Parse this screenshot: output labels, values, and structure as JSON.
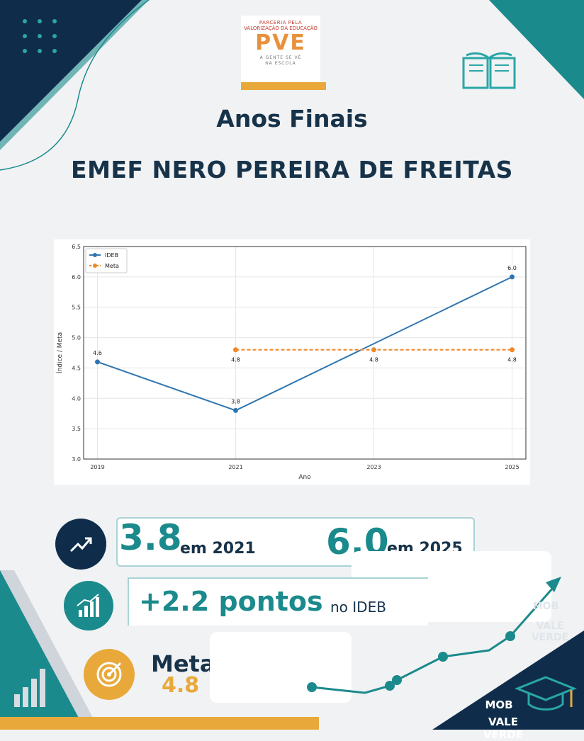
{
  "logo": {
    "line1": "PARCERIA PELA",
    "line2": "VALORIZAÇÃO DA EDUCAÇÃO",
    "mark": "PVE",
    "line3": "A GENTE SE VÊ",
    "line4": "NA ESCOLA"
  },
  "title": "Anos Finais",
  "school": "EMEF NERO PEREIRA DE FREITAS",
  "chart_data": {
    "type": "line",
    "x": [
      2019,
      2021,
      2023,
      2025
    ],
    "series": [
      {
        "name": "IDEB",
        "values": [
          4.6,
          3.8,
          null,
          6.0
        ],
        "color": "#2f75b0",
        "labels": [
          "4.6",
          "3.8",
          "",
          "6.0"
        ]
      },
      {
        "name": "Meta",
        "values": [
          null,
          4.8,
          4.8,
          4.8
        ],
        "color": "#f0882a",
        "labels": [
          "",
          "4.8",
          "4.8",
          "4.8"
        ]
      }
    ],
    "xlabel": "Ano",
    "ylabel": "Índice / Meta",
    "ylim": [
      3.0,
      6.5
    ],
    "yticks": [
      "3.0",
      "3.5",
      "4.0",
      "4.5",
      "5.0",
      "5.5",
      "6.0",
      "6.5"
    ],
    "xticks": [
      "2019",
      "2021",
      "2023",
      "2025"
    ],
    "grid": true,
    "legend": "top-left"
  },
  "stats": {
    "value_2021": "3.8",
    "label_2021": "em 2021",
    "value_2025": "6.0",
    "label_2025": "em 2025",
    "gain": "+2.2 pontos",
    "gain_label": "no IDEB",
    "meta_label": "Meta",
    "meta_value": "4.8"
  },
  "footer": {
    "mob_faded": "MOB",
    "vale_faded": "VALE VERDE",
    "mob": "MOB",
    "vale": "VALE VERDE"
  },
  "colors": {
    "navy": "#0f2d4a",
    "teal": "#1b8a8c",
    "orange": "#e8a93a"
  }
}
